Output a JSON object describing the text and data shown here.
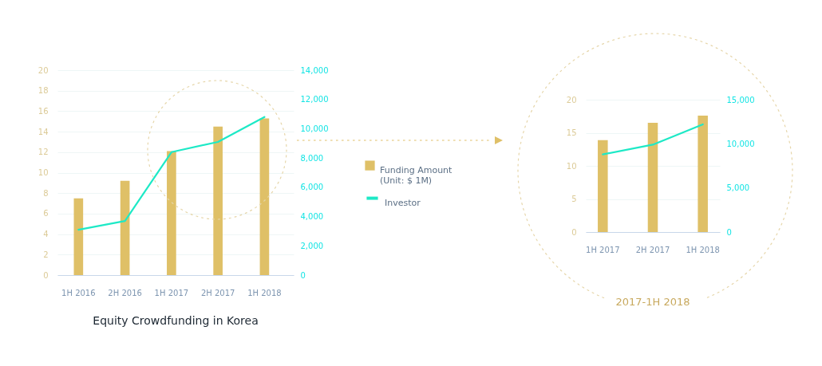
{
  "chart_data": [
    {
      "type": "bar",
      "title": "Equity Crowdfunding in Korea",
      "categories": [
        "1H 2016",
        "2H 2016",
        "1H 2017",
        "2H 2017",
        "1H 2018"
      ],
      "series": [
        {
          "name": "Funding Amount (Unit: $ 1M)",
          "color": "#dfc067",
          "values": [
            7.5,
            9.2,
            12.1,
            14.5,
            15.3
          ]
        },
        {
          "name": "Investor",
          "type": "line",
          "axis": "y2",
          "color": "#1de9c6",
          "values": [
            3100,
            3700,
            8400,
            9100,
            10800
          ]
        }
      ],
      "ylim": [
        0,
        20
      ],
      "yticks": [
        0,
        2,
        4,
        6,
        8,
        10,
        12,
        14,
        16,
        18,
        20
      ],
      "y2lim": [
        0,
        14000
      ],
      "y2ticks": [
        0,
        {
          "value": 2000,
          "label": "2,000"
        },
        {
          "value": 4000,
          "label": "4,000"
        },
        {
          "value": 6000,
          "label": "6,000"
        },
        {
          "value": 8000,
          "label": "8,000"
        },
        {
          "value": 10000,
          "label": "10,000"
        },
        {
          "value": 12000,
          "label": "12,000"
        },
        {
          "value": 14000,
          "label": "14,000"
        }
      ],
      "grid": "y",
      "legend": "right"
    },
    {
      "type": "bar",
      "title": "2017-1H 2018",
      "categories": [
        "1H 2017",
        "2H 2017",
        "1H 2018"
      ],
      "series": [
        {
          "color": "#dfc067",
          "values": [
            13.9,
            16.5,
            17.6
          ]
        },
        {
          "type": "line",
          "axis": "y2",
          "color": "#1de9c6",
          "values": [
            8800,
            9900,
            12200
          ]
        }
      ],
      "ylim": [
        0,
        20
      ],
      "yticks": [
        0,
        5,
        10,
        15,
        20
      ],
      "y2lim": [
        0,
        15000
      ],
      "y2ticks": [
        0,
        {
          "value": 5000,
          "label": "5,000"
        },
        {
          "value": 10000,
          "label": "10,000"
        },
        {
          "value": 15000,
          "label": "15,000"
        }
      ],
      "grid": "y"
    }
  ]
}
